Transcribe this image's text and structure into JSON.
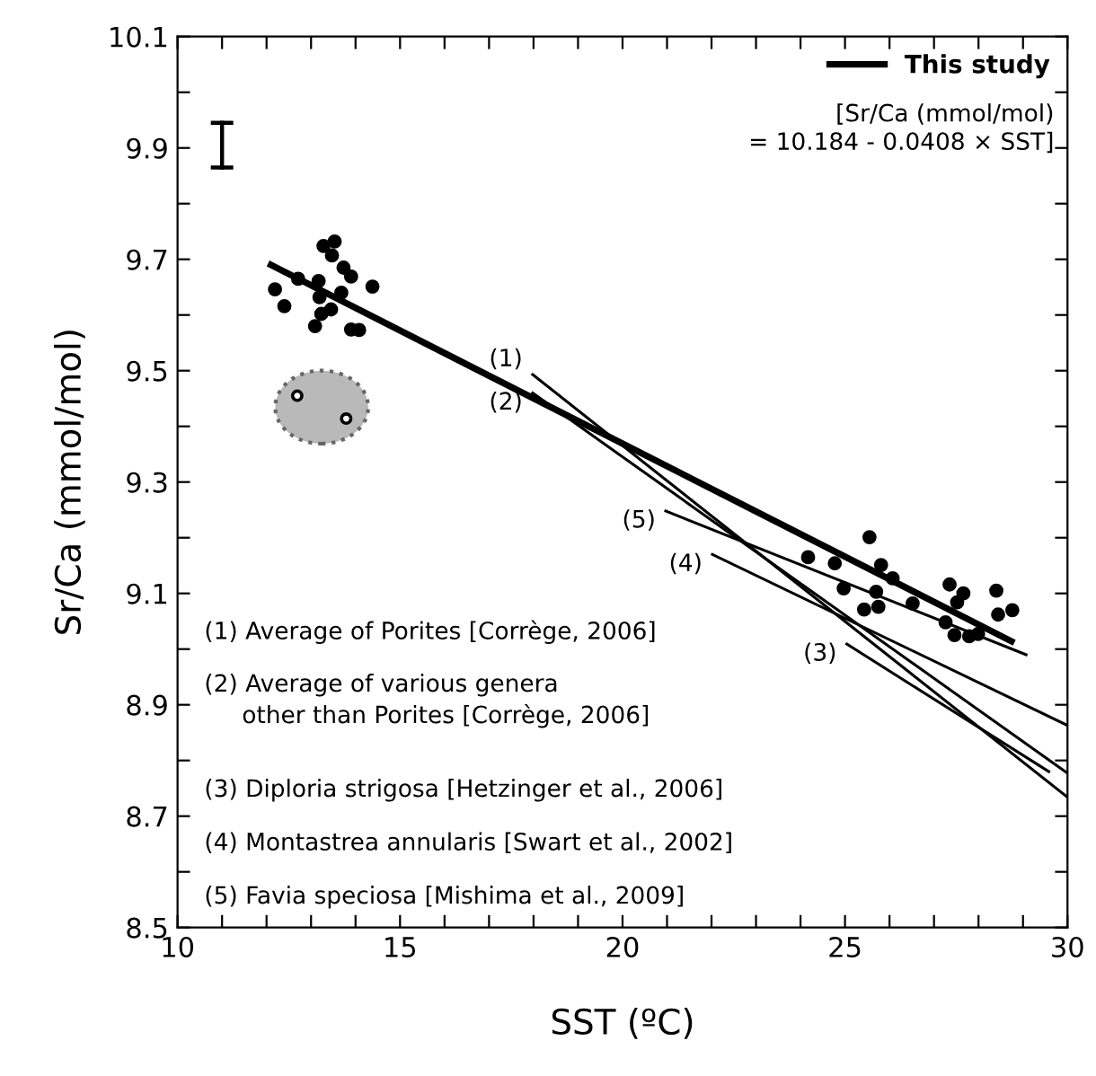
{
  "chart_data": {
    "type": "line",
    "xlabel": "SST (ºC)",
    "ylabel": "Sr/Ca (mmol/mol)",
    "xlim": [
      10,
      30
    ],
    "ylim": [
      8.5,
      10.1
    ],
    "xticks": [
      10,
      {
        "value": 11,
        "label": null
      },
      {
        "value": 12,
        "label": null
      },
      {
        "value": 13,
        "label": null
      },
      {
        "value": 14,
        "label": null
      },
      15,
      {
        "value": 16,
        "label": null
      },
      {
        "value": 17,
        "label": null
      },
      {
        "value": 18,
        "label": null
      },
      {
        "value": 19,
        "label": null
      },
      20,
      {
        "value": 21,
        "label": null
      },
      {
        "value": 22,
        "label": null
      },
      {
        "value": 23,
        "label": null
      },
      {
        "value": 24,
        "label": null
      },
      25,
      {
        "value": 26,
        "label": null
      },
      {
        "value": 27,
        "label": null
      },
      {
        "value": 28,
        "label": null
      },
      {
        "value": 29,
        "label": null
      },
      30
    ],
    "yticks": [
      8.5,
      {
        "value": 8.6,
        "label": null
      },
      8.7,
      {
        "value": 8.8,
        "label": null
      },
      8.9,
      {
        "value": 9.0,
        "label": null
      },
      9.1,
      {
        "value": 9.2,
        "label": null
      },
      9.3,
      {
        "value": 9.4,
        "label": null
      },
      9.5,
      {
        "value": 9.6,
        "label": null
      },
      9.7,
      {
        "value": 9.8,
        "label": null
      },
      9.9,
      {
        "value": 10.0,
        "label": null
      },
      10.1
    ],
    "grid": false,
    "legend": "top right",
    "series": [
      {
        "name": "This study",
        "color": "#000000",
        "x": [
          12.1,
          28.74
        ],
        "values": [
          9.69,
          9.014
        ]
      },
      {
        "color": "#000000",
        "x": [
          17.98,
          30.0
        ],
        "values": [
          9.493,
          8.734
        ]
      },
      {
        "color": "#000000",
        "x": [
          17.98,
          30.0
        ],
        "values": [
          9.46,
          8.777
        ]
      },
      {
        "color": "#000000",
        "x": [
          25.04,
          29.58
        ],
        "values": [
          9.009,
          8.78
        ]
      },
      {
        "color": "#000000",
        "x": [
          22.02,
          30.0
        ],
        "values": [
          9.17,
          8.863
        ]
      },
      {
        "color": "#000000",
        "x": [
          20.97,
          29.07
        ],
        "values": [
          9.248,
          8.99
        ]
      },
      {
        "type": "scatter",
        "color": "#000000",
        "marker": "circle",
        "x": [
          12.19,
          12.4,
          13.28,
          13.53,
          13.47,
          13.73,
          13.9,
          13.17,
          13.19,
          13.68,
          14.38,
          13.45,
          13.23,
          13.09,
          13.9,
          14.08,
          12.71
        ],
        "values": [
          9.646,
          9.616,
          9.724,
          9.732,
          9.707,
          9.685,
          9.669,
          9.661,
          9.632,
          9.64,
          9.651,
          9.61,
          9.602,
          9.58,
          9.574,
          9.573,
          9.665
        ]
      },
      {
        "type": "scatter",
        "color": "#000000",
        "marker": "circle",
        "x": [
          24.17,
          24.77,
          25.55,
          25.81,
          24.97,
          25.7,
          25.43,
          25.75,
          26.07,
          26.52,
          27.35,
          27.66,
          27.52,
          27.26,
          27.46,
          27.79,
          27.99,
          28.4,
          28.44,
          28.76
        ],
        "values": [
          9.165,
          9.154,
          9.201,
          9.151,
          9.109,
          9.103,
          9.071,
          9.076,
          9.127,
          9.082,
          9.116,
          9.1,
          9.084,
          9.048,
          9.025,
          9.023,
          9.027,
          9.105,
          9.062,
          9.07
        ]
      },
      {
        "type": "scatter",
        "color": "#ffffff",
        "marker": "circle",
        "x": [
          12.69,
          13.79
        ],
        "values": [
          9.455,
          9.414
        ]
      },
      {
        "color": "#000000",
        "x": [
          11.0,
          11.0
        ],
        "values": [
          9.865,
          9.945
        ]
      }
    ],
    "annotations": [
      "[Sr/Ca (mmol/mol)\n= 10.184 - 0.0408 × SST]",
      "(1)",
      "(2)",
      "(3)",
      "(4)",
      "(5)",
      "(1) Average of Porites [Corrège, 2006]",
      "(2) Average of various genera\n     other than Porites [Corrège, 2006]",
      "(3) Diploria strigosa [Hetzinger et al., 2006]",
      "(4) Montastrea annularis [Swart et al., 2002]",
      "(5) Favia speciosa [Mishima et al., 2009]"
    ]
  }
}
